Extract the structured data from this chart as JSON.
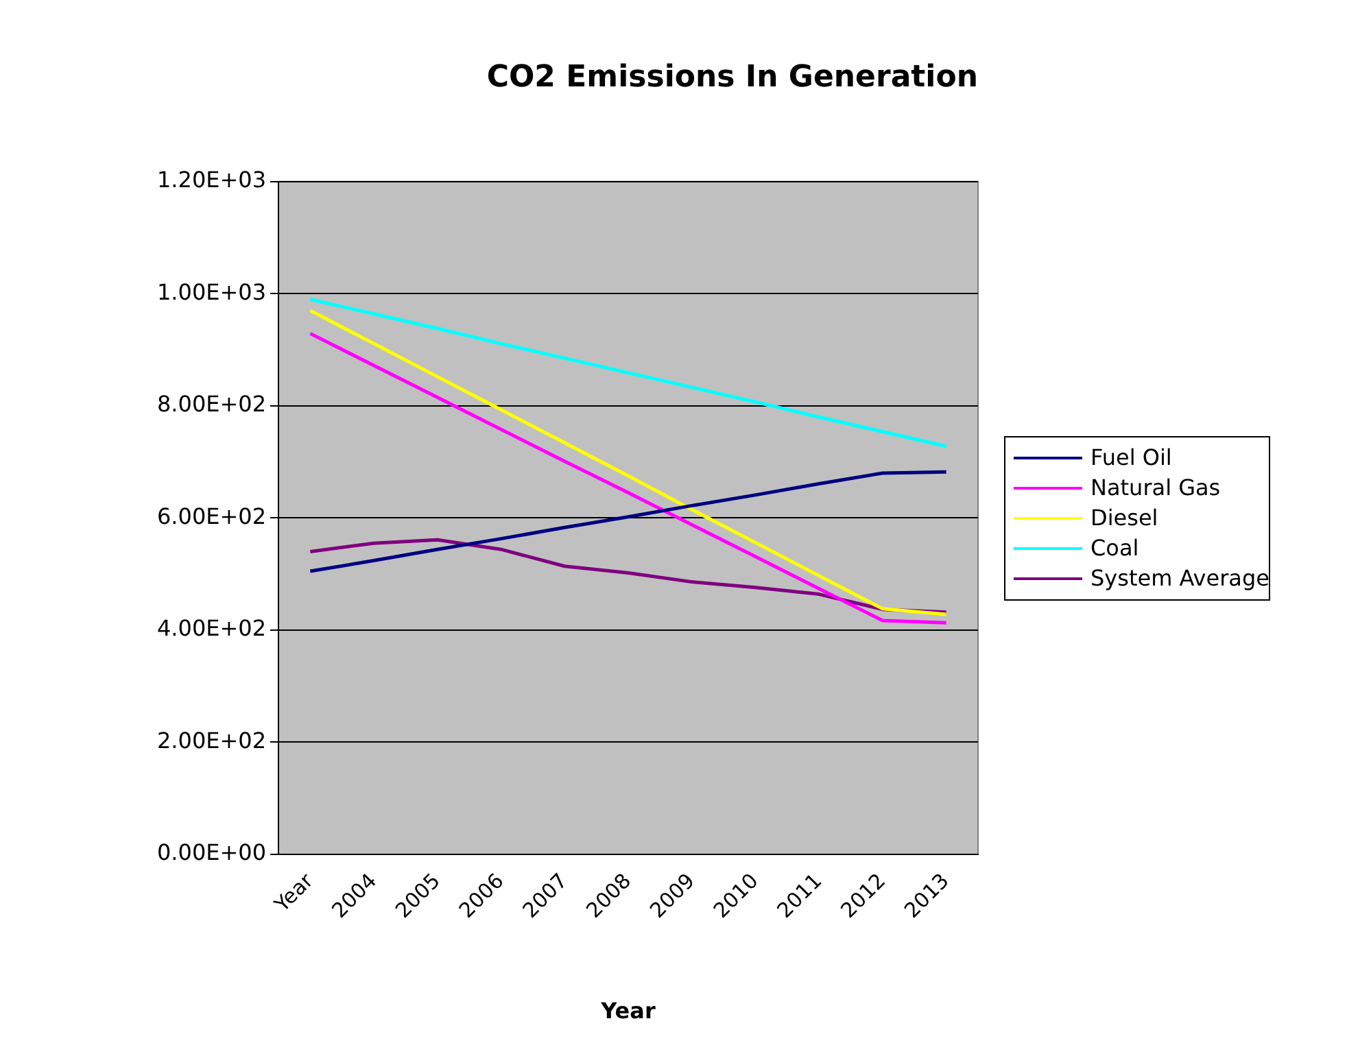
{
  "chart_data": {
    "type": "line",
    "title": "CO2 Emissions In Generation",
    "xlabel": "Year",
    "categories": [
      "Year",
      "2004",
      "2005",
      "2006",
      "2007",
      "2008",
      "2009",
      "2010",
      "2011",
      "2012",
      "2013"
    ],
    "series": [
      {
        "name": "Fuel Oil",
        "color": "#000080",
        "values": [
          505,
          524,
          544,
          563,
          583,
          602,
          622,
          641,
          661,
          680,
          682
        ]
      },
      {
        "name": "Natural Gas",
        "color": "#ff00ff",
        "values": [
          929,
          872,
          815,
          758,
          701,
          645,
          588,
          531,
          474,
          417,
          413
        ]
      },
      {
        "name": "Diesel",
        "color": "#ffff00",
        "values": [
          970,
          911,
          852,
          793,
          734,
          675,
          615,
          556,
          497,
          438,
          428
        ]
      },
      {
        "name": "Coal",
        "color": "#00ffff",
        "values": [
          990,
          964,
          938,
          911,
          885,
          859,
          833,
          807,
          780,
          754,
          728
        ]
      },
      {
        "name": "System Average",
        "color": "#800080",
        "values": [
          540,
          555,
          561,
          544,
          514,
          502,
          486,
          476,
          464,
          437,
          432
        ]
      }
    ],
    "ylim": [
      0,
      1200
    ],
    "yticks": [
      {
        "value": 0,
        "label": "0.00E+00"
      },
      {
        "value": 200,
        "label": "2.00E+02"
      },
      {
        "value": 400,
        "label": "4.00E+02"
      },
      {
        "value": 600,
        "label": "6.00E+02"
      },
      {
        "value": 800,
        "label": "8.00E+02"
      },
      {
        "value": 1000,
        "label": "1.00E+03"
      },
      {
        "value": 1200,
        "label": "1.20E+03"
      }
    ],
    "grid": "y",
    "legend": "right",
    "marker": "none",
    "line_style": "solid"
  }
}
